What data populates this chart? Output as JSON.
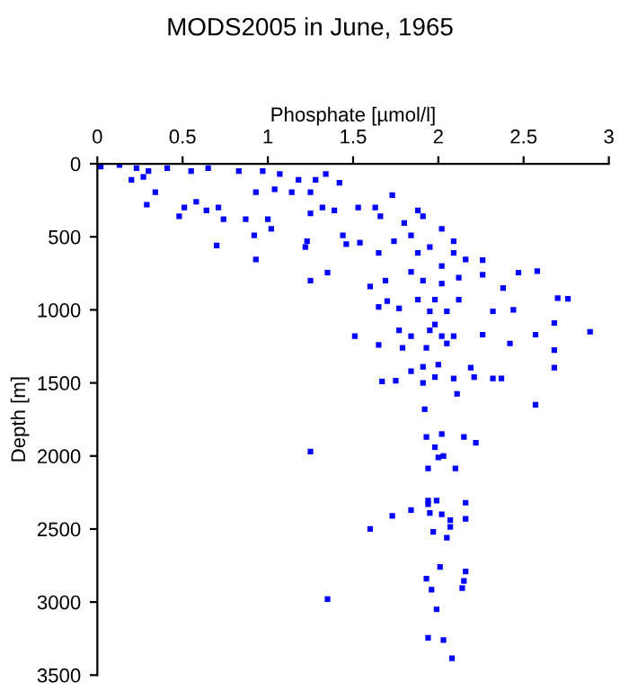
{
  "chart_data": {
    "type": "scatter",
    "title": "MODS2005 in June, 1965",
    "xlabel": "Phosphate [µmol/l]",
    "ylabel": "Depth [m]",
    "xlim": [
      0,
      3
    ],
    "xticks": [
      0,
      0.5,
      1,
      1.5,
      2,
      2.5,
      3
    ],
    "ylim": [
      3500,
      0
    ],
    "yticks": [
      0,
      500,
      1000,
      1500,
      2000,
      2500,
      3000,
      3500
    ],
    "grid": false,
    "marker": "square",
    "series": [
      {
        "color": "#0000ff",
        "x": [
          0.02,
          0.13,
          0.23,
          0.3,
          0.41,
          0.2,
          0.27,
          0.34,
          0.29,
          0.48,
          0.58,
          0.51,
          0.64,
          0.71,
          0.74,
          0.7,
          0.87,
          0.92,
          0.93,
          1.0,
          1.02,
          0.55,
          0.65,
          0.83,
          0.97,
          1.07,
          1.18,
          1.28,
          1.34,
          1.42,
          0.93,
          1.04,
          1.14,
          1.25,
          1.32,
          1.25,
          1.39,
          1.53,
          1.63,
          1.73,
          1.66,
          1.8,
          1.88,
          1.91,
          1.23,
          1.22,
          1.25,
          1.35,
          1.44,
          1.46,
          1.54,
          1.6,
          1.69,
          1.65,
          1.74,
          1.84,
          1.88,
          1.95,
          2.02,
          2.09,
          2.09,
          2.02,
          2.16,
          2.26,
          2.26,
          2.47,
          2.58,
          2.38,
          1.91,
          2.02,
          2.12,
          1.84,
          1.65,
          1.7,
          1.77,
          1.88,
          1.95,
          1.98,
          2.05,
          2.12,
          2.32,
          2.44,
          2.7,
          2.76,
          2.68,
          2.89,
          1.51,
          1.77,
          1.84,
          1.95,
          1.98,
          2.02,
          2.09,
          2.26,
          2.57,
          1.65,
          1.79,
          1.93,
          2.05,
          2.42,
          2.68,
          2.68,
          1.84,
          1.91,
          2.0,
          2.19,
          1.67,
          1.75,
          1.91,
          1.98,
          2.09,
          2.21,
          2.32,
          2.37,
          2.11,
          2.57,
          1.92,
          1.93,
          2.02,
          2.15,
          2.22,
          1.25,
          1.98,
          2.03,
          2.0,
          1.94,
          2.1,
          1.94,
          1.94,
          1.99,
          2.16,
          1.84,
          1.95,
          2.02,
          1.73,
          2.07,
          2.16,
          1.6,
          1.97,
          2.07,
          2.05,
          2.01,
          2.16,
          1.93,
          2.15,
          1.96,
          2.14,
          1.35,
          1.99,
          1.94,
          2.03,
          2.08
        ],
        "values": [
          20,
          8,
          30,
          50,
          30,
          110,
          90,
          195,
          280,
          360,
          260,
          300,
          320,
          300,
          380,
          560,
          380,
          490,
          655,
          380,
          445,
          50,
          30,
          50,
          50,
          70,
          110,
          110,
          70,
          130,
          195,
          175,
          195,
          195,
          300,
          340,
          320,
          300,
          300,
          215,
          360,
          405,
          320,
          360,
          530,
          570,
          800,
          745,
          490,
          550,
          540,
          840,
          800,
          610,
          530,
          490,
          610,
          570,
          445,
          530,
          610,
          700,
          655,
          660,
          760,
          745,
          735,
          850,
          800,
          820,
          780,
          740,
          980,
          940,
          990,
          930,
          1010,
          930,
          1010,
          930,
          1010,
          1000,
          920,
          925,
          1090,
          1150,
          1180,
          1140,
          1180,
          1140,
          1100,
          1180,
          1180,
          1170,
          1170,
          1240,
          1260,
          1260,
          1230,
          1230,
          1275,
          1395,
          1420,
          1390,
          1375,
          1395,
          1490,
          1485,
          1500,
          1460,
          1470,
          1460,
          1470,
          1470,
          1575,
          1650,
          1680,
          1870,
          1850,
          1870,
          1910,
          1970,
          1940,
          2000,
          2010,
          2085,
          2085,
          2330,
          2305,
          2305,
          2320,
          2370,
          2390,
          2400,
          2410,
          2440,
          2430,
          2500,
          2520,
          2485,
          2560,
          2760,
          2790,
          2840,
          2855,
          2915,
          2905,
          2980,
          3050,
          3245,
          3260,
          3385
        ]
      }
    ]
  }
}
